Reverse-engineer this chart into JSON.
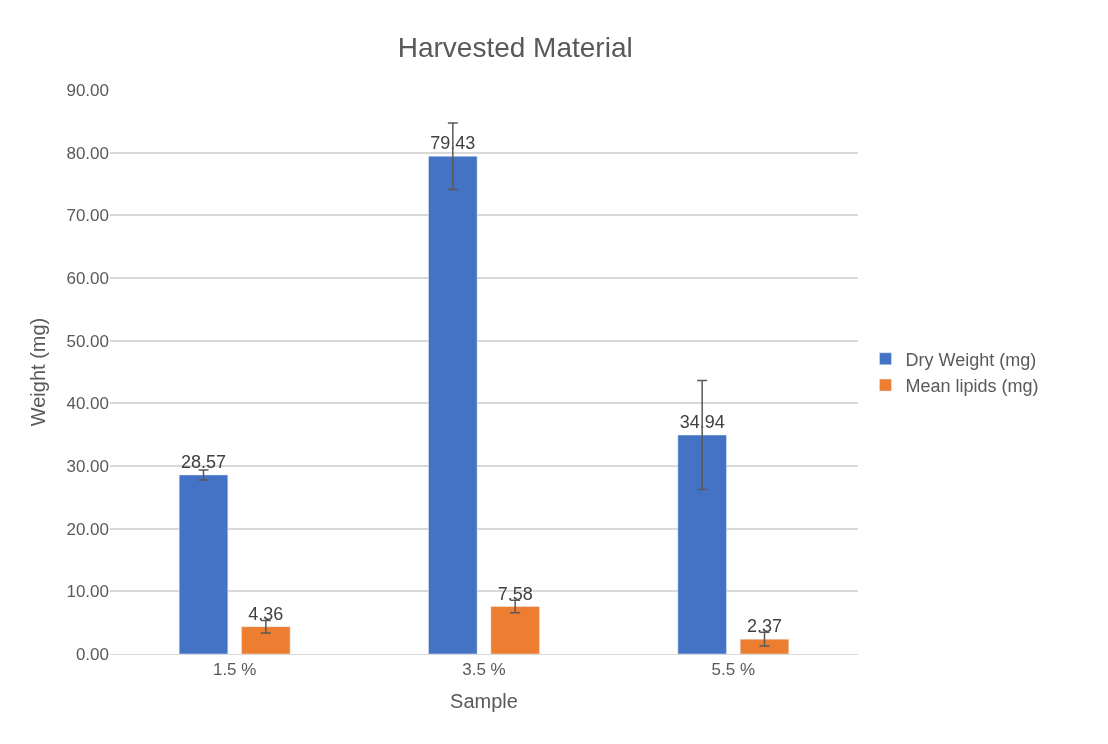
{
  "chart_data": {
    "type": "bar",
    "title": "Harvested Material",
    "xlabel": "Sample",
    "ylabel": "Weight (mg)",
    "categories": [
      "1.5 %",
      "3.5 %",
      "5.5 %"
    ],
    "series": [
      {
        "name": "Dry Weight (mg)",
        "color": "#4472c4",
        "values": [
          28.57,
          79.43,
          34.94
        ],
        "errors": [
          0.8,
          5.3,
          8.7
        ]
      },
      {
        "name": "Mean lipids (mg)",
        "color": "#ed7d31",
        "values": [
          4.36,
          7.58,
          2.37
        ],
        "errors": [
          1.0,
          1.0,
          1.1
        ]
      }
    ],
    "ylim": [
      0,
      90
    ],
    "yticks": [
      {
        "value": 0,
        "label": "0.00"
      },
      {
        "value": 10,
        "label": "10.00"
      },
      {
        "value": 20,
        "label": "20.00"
      },
      {
        "value": 30,
        "label": "30.00"
      },
      {
        "value": 40,
        "label": "40.00"
      },
      {
        "value": 50,
        "label": "50.00"
      },
      {
        "value": 60,
        "label": "60.00"
      },
      {
        "value": 70,
        "label": "70.00"
      },
      {
        "value": 80,
        "label": "80.00"
      },
      {
        "value": 90,
        "label": "90.00"
      }
    ],
    "data_labels": true,
    "grid": "y",
    "legend": "right"
  }
}
